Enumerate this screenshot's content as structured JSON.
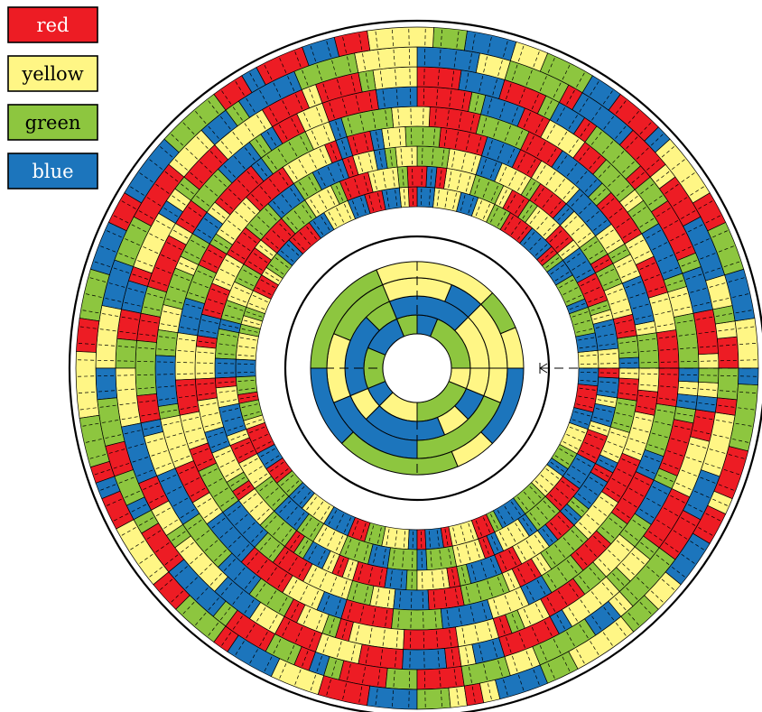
{
  "legend": [
    {
      "label": "red",
      "color": "#ed1c24",
      "text_color": "#ffffff"
    },
    {
      "label": "yellow",
      "color": "#fff685",
      "text_color": "#000000"
    },
    {
      "label": "green",
      "color": "#8dc63f",
      "text_color": "#000000"
    },
    {
      "label": "blue",
      "color": "#1c75bc",
      "text_color": "#ffffff"
    }
  ],
  "diagram": {
    "inner_disc": {
      "rings": 4,
      "sectors": 16
    },
    "outer_band": {
      "rings": 8,
      "sectors": 128
    }
  }
}
